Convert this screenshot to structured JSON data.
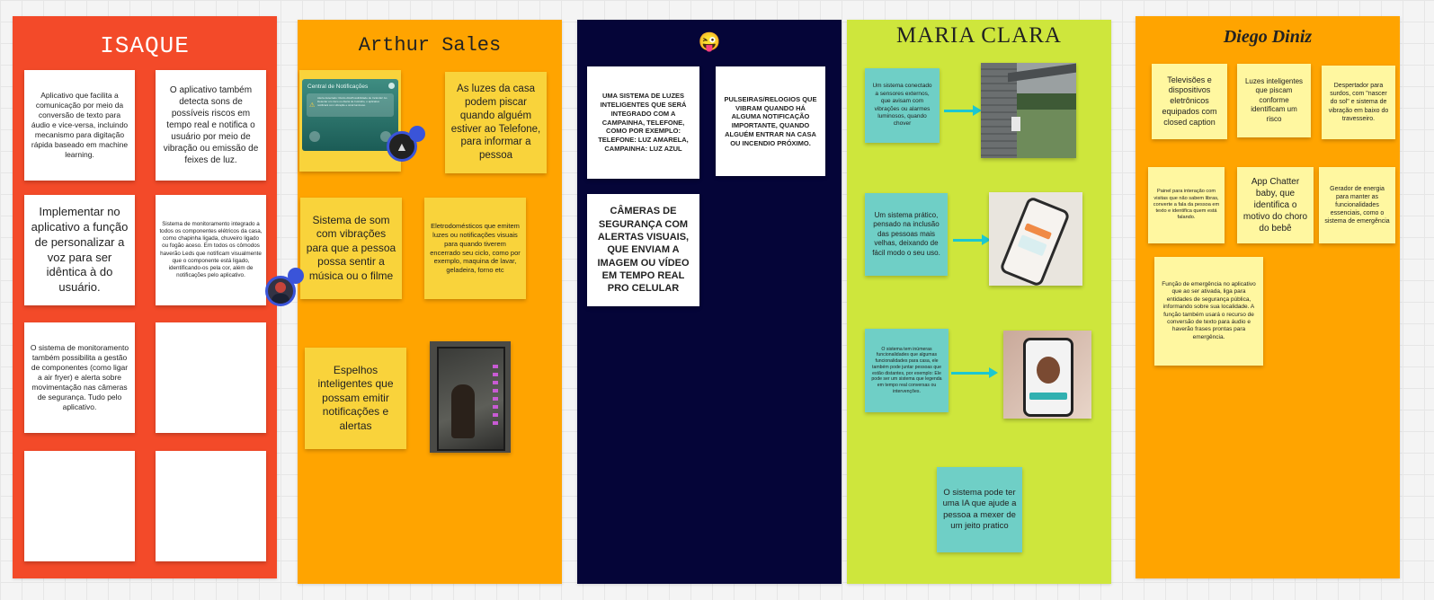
{
  "frames": {
    "isaque": {
      "title": "ISAQUE",
      "color": "#f34a29",
      "notes": [
        "Aplicativo que facilita a comunicação por meio da conversão de texto para áudio e vice-versa, incluindo mecanismo para digitação rápida baseado em machine learning.",
        "O aplicativo também detecta sons de possíveis riscos em tempo real e notifica o usuário por meio de vibração ou emissão de feixes de luz.",
        "Implementar no aplicativo a função de personalizar a voz para ser idêntica à do usuário.",
        "Sistema de monitoramento integrado a todos os componentes elétricos da casa, como chapinha ligada, chuveiro ligado ou fogão aceso. Em todos os cômodos haverão Leds que notificam visualmente que o componente está ligado, identificando-os pela cor, além de notificações pelo aplicativo.",
        "O sistema de monitoramento também possibilita a gestão de componentes (como ligar a air fryer) e alerta sobre movimentação nas câmeras de segurança. Tudo pelo aplicativo.",
        "",
        "",
        ""
      ]
    },
    "arthur": {
      "title": "Arthur Sales",
      "color": "#ffa400",
      "screenshot_header": "Central de Notificações",
      "screenshot_body": "Alerta detectado: Ruído Alto/Possibilidade de Incêndio! Ao Detectar um risco ou Alerta de Incêndio, o aplicativo notificará com vibração e sinal luminoso.",
      "notes": [
        "As luzes da casa podem piscar quando alguém estiver ao Telefone, para informar a pessoa",
        "Sistema de som com vibrações para que a pessoa possa sentir a música ou o filme",
        "Eletrodomésticos que emitem luzes ou notificações visuais para quando tiverem encerrado seu ciclo, como por exemplo, maquina de lavar, geladeira, forno etc",
        "Espelhos inteligentes que possam emitir notificações e alertas"
      ]
    },
    "emoji": {
      "title": "😜",
      "color": "#050538",
      "notes": [
        "UMA SISTEMA DE LUZES INTELIGENTES QUE SERÁ INTEGRADO COM A CAMPAINHA, TELEFONE, COMO POR EXEMPLO: TELEFONE: LUZ AMARELA, CAMPAINHA: LUZ AZUL",
        "PULSEIRAS/RELOGIOS QUE VIBRAM QUANDO HÁ ALGUMA NOTIFICAÇÃO IMPORTANTE, QUANDO ALGUÉM ENTRAR NA CASA OU INCENDIO PRÓXIMO.",
        "CÂMERAS DE SEGURANÇA COM ALERTAS VISUAIS, QUE ENVIAM A IMAGEM OU VÍDEO EM TEMPO REAL PRO CELULAR"
      ]
    },
    "maria": {
      "title": "MARIA CLARA",
      "color": "#cee63c",
      "notes": [
        "Um sistema conectado a sensores externos, que avisam com vibrações ou alarmes luminosos, quando chover",
        "Um sistema prático, pensado na inclusão das pessoas mais velhas, deixando de fácil modo o seu uso.",
        "O sistema tem inúmeras funcionalidades que algumas funcionalidades para casa, ele também pode juntar pessoas que estão distantes, por exemplo: Ele pode ser um sistema que legenda em tempo real conversas ou intervenções.",
        "O sistema pode ter uma IA que ajude a pessoa a mexer de um jeito pratico"
      ]
    },
    "diego": {
      "title": "Diego Diniz",
      "color": "#ffa400",
      "notes": [
        "Televisões e dispositivos eletrônicos equipados com closed caption",
        "Luzes inteligentes que piscam conforme identificam um risco",
        "Despertador para surdos, com \"nascer do sol\" e sistema de vibração em baixo do travesseiro.",
        "Painel para interação com visitas que não sabem libras, converte a fala da pessoa em texto e identifica quem está falando.",
        "App Chatter baby, que identifica o motivo do choro do bebê",
        "Gerador de energia para manter as funcionalidades essenciais, como o sistema de emergência",
        "Função de emergência no aplicativo que ao ser ativada, liga para entidades de segurança pública, informando sobre sua localidade. A função também usará o recurso de conversão de texto para áudio e haverão frases prontas para emergência."
      ]
    }
  }
}
